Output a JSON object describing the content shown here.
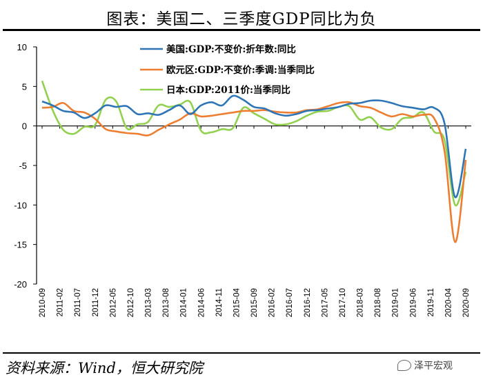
{
  "title": "图表：美国二、三季度GDP同比为负",
  "source": "资料来源：Wind，恒大研究院",
  "watermark": "泽平宏观",
  "chart_data": {
    "type": "line",
    "title": "图表：美国二、三季度GDP同比为负",
    "ylim": [
      -20,
      10
    ],
    "yticks": [
      10,
      5,
      0,
      -5,
      -10,
      -15,
      -20
    ],
    "grid": false,
    "legend_position": "top-center",
    "x_labels": [
      "2010-09",
      "2011-02",
      "2011-07",
      "2011-12",
      "2012-05",
      "2012-10",
      "2013-03",
      "2013-08",
      "2014-01",
      "2014-06",
      "2014-11",
      "2015-04",
      "2015-09",
      "2016-02",
      "2016-07",
      "2016-12",
      "2017-05",
      "2017-10",
      "2018-03",
      "2018-08",
      "2019-01",
      "2019-06",
      "2019-11",
      "2020-04",
      "2020-09"
    ],
    "quarters": [
      "2010Q3",
      "2010Q4",
      "2011Q1",
      "2011Q2",
      "2011Q3",
      "2011Q4",
      "2012Q1",
      "2012Q2",
      "2012Q3",
      "2012Q4",
      "2013Q1",
      "2013Q2",
      "2013Q3",
      "2013Q4",
      "2014Q1",
      "2014Q2",
      "2014Q3",
      "2014Q4",
      "2015Q1",
      "2015Q2",
      "2015Q3",
      "2015Q4",
      "2016Q1",
      "2016Q2",
      "2016Q3",
      "2016Q4",
      "2017Q1",
      "2017Q2",
      "2017Q3",
      "2017Q4",
      "2018Q1",
      "2018Q2",
      "2018Q3",
      "2018Q4",
      "2019Q1",
      "2019Q2",
      "2019Q3",
      "2019Q4",
      "2020Q1",
      "2020Q2",
      "2020Q3"
    ],
    "series": [
      {
        "name": "美国:GDP:不变价:折年数:同比",
        "color": "#2E75B6",
        "values": [
          3.1,
          2.6,
          1.9,
          1.7,
          1.0,
          1.6,
          2.6,
          2.4,
          2.5,
          1.5,
          1.6,
          1.4,
          2.0,
          2.6,
          1.5,
          2.6,
          3.0,
          2.6,
          3.8,
          3.3,
          2.4,
          2.2,
          1.6,
          1.3,
          1.5,
          1.9,
          2.0,
          2.2,
          2.4,
          2.8,
          2.9,
          3.2,
          3.2,
          2.9,
          2.5,
          2.3,
          2.1,
          2.3,
          0.3,
          -9.0,
          -2.9
        ]
      },
      {
        "name": "欧元区:GDP:不变价:季调:当季同比",
        "color": "#ED7D31",
        "values": [
          2.3,
          2.4,
          2.9,
          1.9,
          1.7,
          0.9,
          -0.4,
          -0.7,
          -0.9,
          -1.0,
          -1.2,
          -0.5,
          0.2,
          0.8,
          1.6,
          1.2,
          1.3,
          1.5,
          1.7,
          1.9,
          1.9,
          2.0,
          1.8,
          1.7,
          1.7,
          2.0,
          2.1,
          2.5,
          2.9,
          3.0,
          2.5,
          2.3,
          1.7,
          1.2,
          1.5,
          1.2,
          1.4,
          1.0,
          -3.2,
          -14.7,
          -4.3
        ]
      },
      {
        "name": "日本:GDP:2011价:当季同比",
        "color": "#92D050",
        "values": [
          5.7,
          2.0,
          -0.5,
          -1.0,
          -0.1,
          0.1,
          3.3,
          3.1,
          -0.3,
          0.2,
          0.5,
          2.6,
          2.4,
          2.7,
          3.0,
          -0.6,
          -0.8,
          -0.4,
          -0.3,
          2.3,
          1.6,
          0.9,
          0.2,
          0.2,
          0.6,
          1.3,
          1.8,
          1.9,
          2.4,
          2.5,
          0.8,
          1.1,
          -0.2,
          -0.4,
          0.9,
          1.1,
          1.7,
          -0.7,
          -1.8,
          -10.0,
          -5.8
        ]
      }
    ]
  }
}
